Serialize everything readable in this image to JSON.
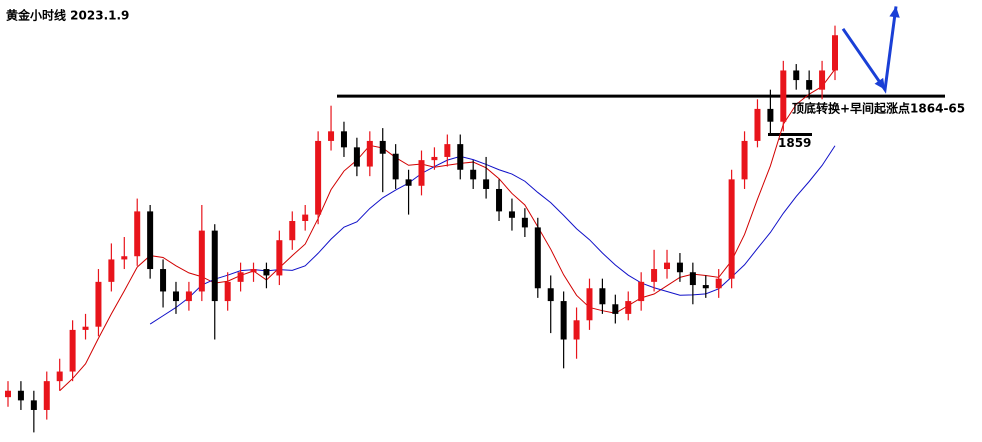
{
  "chart_data": {
    "type": "candlestick",
    "title": "黄金小时线 2023.1.9",
    "ohlc": [
      [
        1818,
        1820.5,
        1816.5,
        1819
      ],
      [
        1819,
        1820.5,
        1816,
        1817.5
      ],
      [
        1817.5,
        1819,
        1812.5,
        1816
      ],
      [
        1816,
        1822,
        1814.5,
        1820.5
      ],
      [
        1820.5,
        1824,
        1819,
        1822
      ],
      [
        1822,
        1830,
        1820.5,
        1828.5
      ],
      [
        1828.5,
        1831,
        1827,
        1829
      ],
      [
        1829,
        1838,
        1827.5,
        1836
      ],
      [
        1836,
        1842,
        1834.5,
        1839.5
      ],
      [
        1839.5,
        1843,
        1838,
        1840
      ],
      [
        1840,
        1849,
        1838.5,
        1847
      ],
      [
        1847,
        1848,
        1836.5,
        1838
      ],
      [
        1838,
        1839.5,
        1832,
        1834.5
      ],
      [
        1834.5,
        1836,
        1831,
        1833
      ],
      [
        1833,
        1836,
        1831.5,
        1834.5
      ],
      [
        1834.5,
        1848,
        1833,
        1844
      ],
      [
        1844,
        1845,
        1827,
        1833
      ],
      [
        1833,
        1837.5,
        1831.5,
        1836
      ],
      [
        1836,
        1839,
        1834.5,
        1837.5
      ],
      [
        1837.5,
        1839,
        1836,
        1838
      ],
      [
        1838,
        1839,
        1835,
        1837
      ],
      [
        1837,
        1844,
        1835.5,
        1842.5
      ],
      [
        1842.5,
        1847,
        1841,
        1845.5
      ],
      [
        1845.5,
        1848,
        1844,
        1846.5
      ],
      [
        1846.5,
        1859.5,
        1845,
        1858
      ],
      [
        1858,
        1863.5,
        1856.5,
        1859.5
      ],
      [
        1859.5,
        1861,
        1855.5,
        1857
      ],
      [
        1857,
        1858.5,
        1852.5,
        1854
      ],
      [
        1854,
        1859.5,
        1852.5,
        1858
      ],
      [
        1858,
        1860,
        1850,
        1856
      ],
      [
        1856,
        1857.5,
        1850.5,
        1852
      ],
      [
        1852,
        1853.5,
        1846.5,
        1851
      ],
      [
        1851,
        1856.5,
        1849.5,
        1855
      ],
      [
        1855,
        1857,
        1853.5,
        1855.5
      ],
      [
        1855.5,
        1859,
        1854,
        1857.5
      ],
      [
        1857.5,
        1859,
        1852,
        1853.5
      ],
      [
        1853.5,
        1855,
        1850.5,
        1852
      ],
      [
        1852,
        1855.5,
        1849,
        1850.5
      ],
      [
        1850.5,
        1852,
        1845.5,
        1847
      ],
      [
        1847,
        1849,
        1844,
        1846
      ],
      [
        1846,
        1847.5,
        1843,
        1844.5
      ],
      [
        1844.5,
        1846,
        1833.5,
        1835
      ],
      [
        1835,
        1837,
        1828,
        1833
      ],
      [
        1833,
        1834.5,
        1822.5,
        1827
      ],
      [
        1827,
        1832,
        1824,
        1830
      ],
      [
        1830,
        1836.5,
        1828.5,
        1835
      ],
      [
        1835,
        1836.5,
        1831,
        1832.5
      ],
      [
        1832.5,
        1834,
        1829.5,
        1831
      ],
      [
        1831,
        1834.5,
        1830,
        1833
      ],
      [
        1833,
        1837.5,
        1831.5,
        1836
      ],
      [
        1836,
        1841,
        1834.5,
        1838
      ],
      [
        1838,
        1841,
        1836.5,
        1839
      ],
      [
        1839,
        1840.5,
        1836,
        1837.5
      ],
      [
        1837.5,
        1839,
        1832.5,
        1835.5
      ],
      [
        1835.5,
        1837,
        1833.5,
        1835
      ],
      [
        1835,
        1838,
        1833.5,
        1836.5
      ],
      [
        1836.5,
        1853.5,
        1835,
        1852
      ],
      [
        1852,
        1859.5,
        1850.5,
        1858
      ],
      [
        1858,
        1864.5,
        1857,
        1863
      ],
      [
        1863,
        1866,
        1859,
        1861
      ],
      [
        1861,
        1870.5,
        1859.5,
        1869
      ],
      [
        1869,
        1870,
        1866,
        1867.5
      ],
      [
        1867.5,
        1869,
        1864.5,
        1866
      ],
      [
        1866,
        1870.5,
        1864.5,
        1869
      ],
      [
        1869,
        1876,
        1867.5,
        1874.5
      ]
    ],
    "up_color": "#e8141b",
    "down_color": "#000000",
    "ylim": [
      1811,
      1880
    ],
    "levels": [
      {
        "value": 1865,
        "label": "顶底转换+早间起涨点1864-65"
      },
      {
        "value": 1859,
        "label": "1859"
      }
    ],
    "projection": {
      "color": "#1a3fd6",
      "values": [
        1875.5,
        1866,
        1879
      ]
    }
  }
}
